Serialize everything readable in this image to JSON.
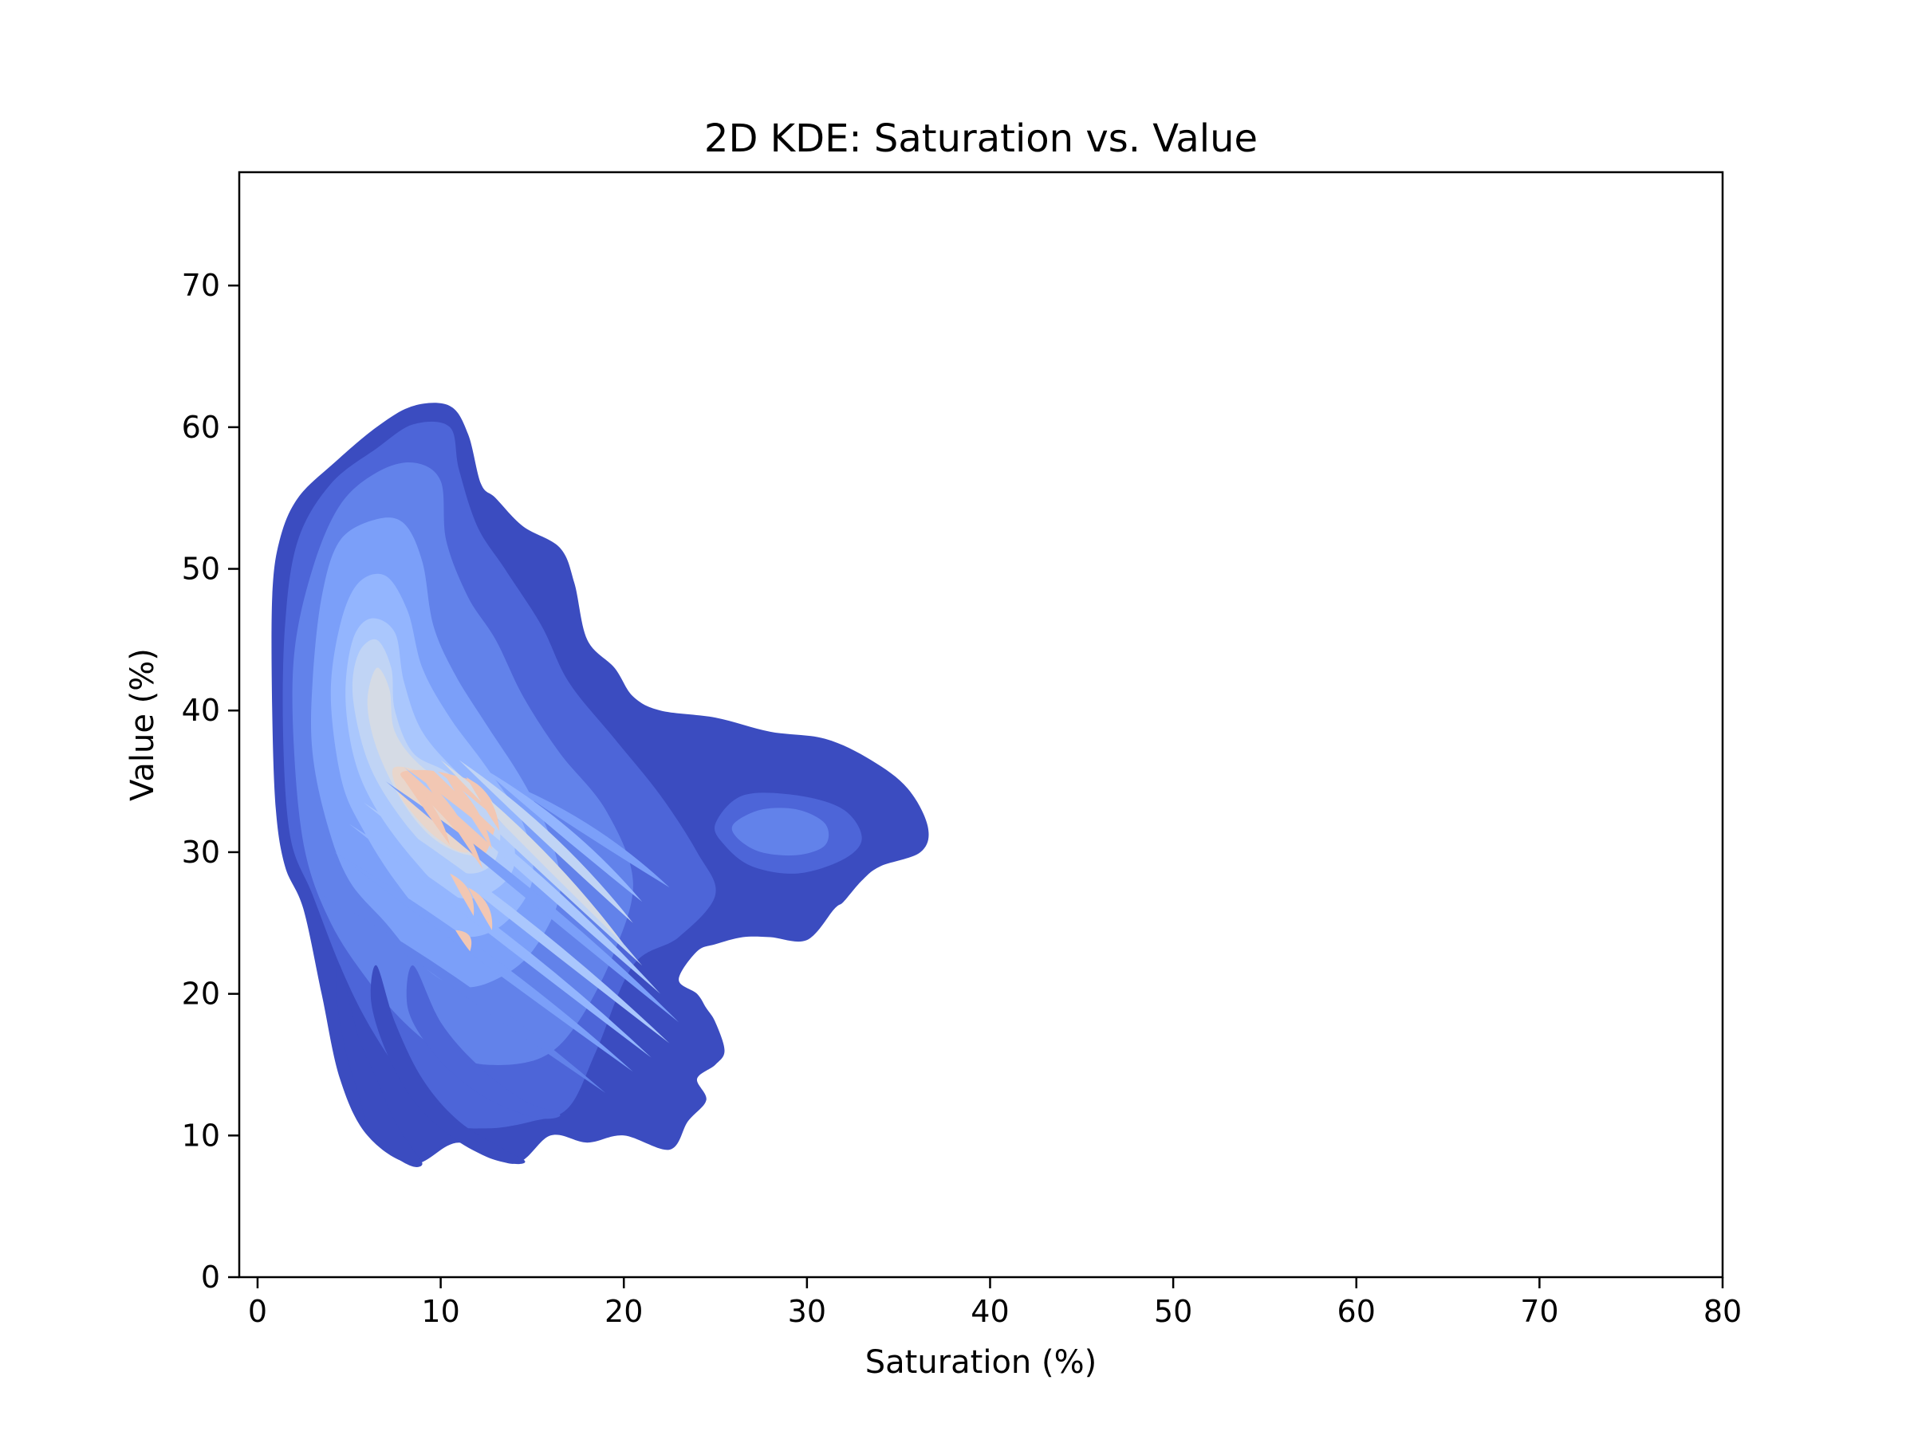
{
  "chart_data": {
    "type": "heatmap",
    "subtype": "2d-kde-filled-contour",
    "title": "2D KDE: Saturation vs. Value",
    "xlabel": "Saturation (%)",
    "ylabel": "Value (%)",
    "xlim": [
      -1,
      80
    ],
    "ylim": [
      0,
      78
    ],
    "xticks": [
      0,
      10,
      20,
      30,
      40,
      50,
      60,
      70,
      80
    ],
    "yticks": [
      0,
      10,
      20,
      30,
      40,
      50,
      60,
      70
    ],
    "grid": false,
    "colormap": "coolwarm",
    "level_colors": [
      "#3b4cc0",
      "#4d65d8",
      "#6282ea",
      "#7b9ff9",
      "#93b5fe",
      "#aac7fd",
      "#c0d4f5",
      "#d5dbe5",
      "#e8d6cc",
      "#f2c7b3",
      "#e8765c"
    ],
    "contours": [
      {
        "level": 1,
        "polygon": [
          [
            0.8,
            48
          ],
          [
            1.2,
            52
          ],
          [
            2.2,
            55
          ],
          [
            4.2,
            57.5
          ],
          [
            6.5,
            60
          ],
          [
            8.5,
            61.5
          ],
          [
            10.5,
            61.5
          ],
          [
            11.5,
            59.5
          ],
          [
            12.2,
            56
          ],
          [
            13,
            55
          ],
          [
            14.5,
            53
          ],
          [
            16.5,
            51.5
          ],
          [
            17.3,
            49
          ],
          [
            18,
            45
          ],
          [
            19.5,
            43
          ],
          [
            20.5,
            41
          ],
          [
            22,
            40
          ],
          [
            25,
            39.5
          ],
          [
            28,
            38.5
          ],
          [
            31,
            38
          ],
          [
            33.5,
            36.5
          ],
          [
            35.5,
            34.5
          ],
          [
            36.6,
            31.8
          ],
          [
            36.2,
            30
          ],
          [
            34,
            29
          ],
          [
            33,
            28
          ],
          [
            32,
            26.5
          ],
          [
            31.5,
            26
          ],
          [
            30,
            23.8
          ],
          [
            28,
            24
          ],
          [
            26.5,
            24
          ],
          [
            25,
            23.5
          ],
          [
            24,
            23
          ],
          [
            23,
            21
          ],
          [
            24,
            20
          ],
          [
            24.5,
            19
          ],
          [
            25,
            18
          ],
          [
            25.5,
            16
          ],
          [
            25,
            15
          ],
          [
            24,
            14
          ],
          [
            24.5,
            12.5
          ],
          [
            23.5,
            11
          ],
          [
            22.5,
            9
          ],
          [
            20,
            10
          ],
          [
            18,
            9.5
          ],
          [
            16,
            10
          ],
          [
            14,
            8
          ],
          [
            11,
            9.5
          ],
          [
            8.5,
            8
          ],
          [
            6,
            10
          ],
          [
            4.5,
            14
          ],
          [
            3.5,
            20
          ],
          [
            2.5,
            26
          ],
          [
            1.5,
            29
          ],
          [
            1,
            33
          ],
          [
            0.8,
            40
          ]
        ]
      },
      {
        "level": 2,
        "polygon": [
          [
            1.5,
            46
          ],
          [
            2.2,
            52
          ],
          [
            4,
            56
          ],
          [
            6.5,
            58.5
          ],
          [
            8.5,
            60.2
          ],
          [
            10.5,
            60
          ],
          [
            11,
            57
          ],
          [
            12,
            53
          ],
          [
            13.5,
            50
          ],
          [
            15.5,
            46
          ],
          [
            17,
            42
          ],
          [
            19.5,
            38
          ],
          [
            22,
            34
          ],
          [
            24,
            30
          ],
          [
            25,
            27
          ],
          [
            23,
            24
          ],
          [
            20.5,
            22
          ],
          [
            18.5,
            16
          ],
          [
            17,
            12
          ],
          [
            15,
            11
          ],
          [
            12.5,
            10.5
          ],
          [
            10,
            11
          ],
          [
            8,
            14
          ],
          [
            6,
            18
          ],
          [
            4.5,
            22
          ],
          [
            3,
            27
          ],
          [
            1.8,
            31
          ],
          [
            1.4,
            38
          ]
        ]
      },
      {
        "level": 3,
        "polygon": [
          [
            2,
            44
          ],
          [
            3,
            50
          ],
          [
            4.5,
            54.5
          ],
          [
            6.5,
            56.8
          ],
          [
            8.5,
            57.5
          ],
          [
            10,
            56.2
          ],
          [
            10.3,
            52
          ],
          [
            11.5,
            48
          ],
          [
            13,
            45
          ],
          [
            14.5,
            41
          ],
          [
            16.5,
            37
          ],
          [
            19,
            33
          ],
          [
            20.5,
            28
          ],
          [
            19.5,
            23
          ],
          [
            17.5,
            18
          ],
          [
            15.5,
            15.5
          ],
          [
            12.5,
            15
          ],
          [
            10,
            16
          ],
          [
            8,
            18
          ],
          [
            6,
            21
          ],
          [
            4,
            25
          ],
          [
            2.6,
            30
          ],
          [
            2,
            37
          ]
        ]
      },
      {
        "level": 4,
        "polygon": [
          [
            3,
            42
          ],
          [
            3.5,
            48
          ],
          [
            4.5,
            52
          ],
          [
            6.5,
            53.5
          ],
          [
            8,
            53.2
          ],
          [
            9,
            50.5
          ],
          [
            9.6,
            46
          ],
          [
            10.8,
            42.5
          ],
          [
            12.5,
            39
          ],
          [
            14.5,
            35
          ],
          [
            16,
            31
          ],
          [
            16.5,
            27
          ],
          [
            15,
            23
          ],
          [
            13,
            21
          ],
          [
            11,
            20.5
          ],
          [
            9,
            22
          ],
          [
            7,
            25
          ],
          [
            5,
            28
          ],
          [
            3.8,
            32
          ],
          [
            3,
            37
          ]
        ]
      },
      {
        "level": 5,
        "polygon": [
          [
            4,
            41
          ],
          [
            4.5,
            46
          ],
          [
            5.5,
            49
          ],
          [
            7,
            49.5
          ],
          [
            8.2,
            47
          ],
          [
            9,
            43
          ],
          [
            10.5,
            39.5
          ],
          [
            12.5,
            36
          ],
          [
            14.5,
            32
          ],
          [
            15,
            28
          ],
          [
            13.5,
            25
          ],
          [
            11.5,
            24
          ],
          [
            9.5,
            25
          ],
          [
            7.5,
            28
          ],
          [
            5.8,
            31.5
          ],
          [
            4.6,
            35
          ]
        ]
      },
      {
        "level": 6,
        "polygon": [
          [
            4.8,
            41
          ],
          [
            5.2,
            45
          ],
          [
            6.2,
            46.5
          ],
          [
            7.5,
            45.5
          ],
          [
            8,
            42
          ],
          [
            9,
            38.5
          ],
          [
            11,
            35.5
          ],
          [
            13.5,
            32.5
          ],
          [
            14,
            29
          ],
          [
            12.5,
            27
          ],
          [
            10.5,
            27
          ],
          [
            8.5,
            29.5
          ],
          [
            6.5,
            33
          ],
          [
            5.3,
            36.5
          ]
        ]
      },
      {
        "level": 7,
        "polygon": [
          [
            5.2,
            41
          ],
          [
            5.5,
            44
          ],
          [
            6.5,
            45
          ],
          [
            7.3,
            43
          ],
          [
            7.5,
            40
          ],
          [
            8.5,
            37
          ],
          [
            10.5,
            35.5
          ],
          [
            13,
            32.5
          ],
          [
            13,
            29.5
          ],
          [
            11.5,
            28.5
          ],
          [
            9.5,
            30
          ],
          [
            7.5,
            33
          ],
          [
            6,
            36.5
          ]
        ]
      },
      {
        "level": 8,
        "polygon": [
          [
            6,
            40.5
          ],
          [
            6.5,
            43
          ],
          [
            7.2,
            41.5
          ],
          [
            7.5,
            38.5
          ],
          [
            9,
            36
          ],
          [
            11.5,
            34
          ],
          [
            12.8,
            31.5
          ],
          [
            12,
            29.8
          ],
          [
            10,
            30.6
          ],
          [
            8.2,
            33
          ],
          [
            6.6,
            37
          ]
        ]
      },
      {
        "level": 9,
        "polygon": [
          [
            7.5,
            36
          ],
          [
            9.5,
            35.5
          ],
          [
            11.5,
            34.5
          ],
          [
            12.5,
            32
          ],
          [
            11.5,
            30
          ],
          [
            9.8,
            31
          ],
          [
            8.3,
            33
          ],
          [
            7.6,
            34.5
          ]
        ]
      },
      {
        "level": 10,
        "polygon": [
          [
            7.8,
            35.5
          ],
          [
            9,
            34
          ],
          [
            10.5,
            32
          ],
          [
            12,
            29.5
          ],
          [
            12.8,
            31
          ],
          [
            13,
            33
          ],
          [
            12,
            34.8
          ],
          [
            10.5,
            35.5
          ],
          [
            9,
            35.8
          ]
        ]
      },
      {
        "level": 1,
        "polygon": [
          [
            4.5,
            22
          ],
          [
            5.5,
            17
          ],
          [
            6.5,
            14
          ],
          [
            7.5,
            11
          ],
          [
            8.5,
            9
          ],
          [
            9,
            8
          ],
          [
            8.5,
            7.8
          ],
          [
            7.5,
            8.5
          ],
          [
            6.2,
            10
          ],
          [
            5.5,
            13
          ],
          [
            4.8,
            16
          ],
          [
            4.3,
            20
          ]
        ]
      },
      {
        "level": 1,
        "polygon": [
          [
            6.5,
            22
          ],
          [
            7.5,
            18
          ],
          [
            9,
            14
          ],
          [
            11,
            11
          ],
          [
            13.5,
            9
          ],
          [
            14.6,
            8.2
          ],
          [
            14,
            8
          ],
          [
            12.5,
            8.5
          ],
          [
            10.5,
            10
          ],
          [
            8.5,
            12.5
          ],
          [
            7,
            16
          ],
          [
            6.2,
            19.5
          ]
        ]
      },
      {
        "level": 2,
        "polygon": [
          [
            8.5,
            22
          ],
          [
            10,
            18
          ],
          [
            12,
            15
          ],
          [
            14.5,
            12.5
          ],
          [
            16.5,
            11.5
          ],
          [
            15.5,
            11.2
          ],
          [
            13.5,
            12
          ],
          [
            11.5,
            13.5
          ],
          [
            9.5,
            16
          ],
          [
            8.2,
            19
          ]
        ]
      },
      {
        "level": 2,
        "polygon": [
          [
            25,
            32
          ],
          [
            26.5,
            34
          ],
          [
            29.5,
            34
          ],
          [
            32,
            33
          ],
          [
            33,
            31
          ],
          [
            32,
            29.5
          ],
          [
            29.5,
            28.5
          ],
          [
            27,
            29
          ],
          [
            25.5,
            30.5
          ]
        ]
      },
      {
        "level": 3,
        "polygon": [
          [
            26,
            32
          ],
          [
            27.5,
            33
          ],
          [
            29.5,
            33
          ],
          [
            31,
            32
          ],
          [
            31,
            30.5
          ],
          [
            29.5,
            29.8
          ],
          [
            27.5,
            30
          ],
          [
            26.2,
            31
          ]
        ]
      }
    ],
    "level_bands": [
      {
        "level": 3,
        "x_start": 3.5,
        "y_start": 27,
        "x_end": 19,
        "y_end": 13
      },
      {
        "level": 4,
        "x_start": 4.2,
        "y_start": 30,
        "x_end": 20.5,
        "y_end": 14.5
      },
      {
        "level": 5,
        "x_start": 5,
        "y_start": 32,
        "x_end": 21.5,
        "y_end": 15.5
      },
      {
        "level": 6,
        "x_start": 5.8,
        "y_start": 33.5,
        "x_end": 22.5,
        "y_end": 16.5
      },
      {
        "level": 4,
        "x_start": 7,
        "y_start": 35,
        "x_end": 23,
        "y_end": 18
      },
      {
        "level": 6,
        "x_start": 8,
        "y_start": 36,
        "x_end": 22,
        "y_end": 20
      },
      {
        "level": 7,
        "x_start": 9,
        "y_start": 36.5,
        "x_end": 21,
        "y_end": 22
      },
      {
        "level": 8,
        "x_start": 10,
        "y_start": 36.5,
        "x_end": 20,
        "y_end": 23.5
      },
      {
        "level": 7,
        "x_start": 11,
        "y_start": 36.5,
        "x_end": 20.5,
        "y_end": 25
      },
      {
        "level": 5,
        "x_start": 12.2,
        "y_start": 36,
        "x_end": 21,
        "y_end": 26.5
      },
      {
        "level": 4,
        "x_start": 13.5,
        "y_start": 35,
        "x_end": 22.5,
        "y_end": 27.5
      }
    ],
    "peak_streaks": [
      {
        "level": 10,
        "x_start": 7.8,
        "y_start": 35.5,
        "x_end": 10.5,
        "y_end": 30.5
      },
      {
        "level": 10,
        "x_start": 8.9,
        "y_start": 35.5,
        "x_end": 12.3,
        "y_end": 28.8
      },
      {
        "level": 10,
        "x_start": 10.2,
        "y_start": 35.5,
        "x_end": 12.8,
        "y_end": 30.2
      },
      {
        "level": 10,
        "x_start": 11.4,
        "y_start": 35.3,
        "x_end": 13.2,
        "y_end": 31.5
      },
      {
        "level": 10,
        "x_start": 10.5,
        "y_start": 28.5,
        "x_end": 11.8,
        "y_end": 25.5
      },
      {
        "level": 10,
        "x_start": 11.5,
        "y_start": 27.5,
        "x_end": 12.8,
        "y_end": 24.5
      },
      {
        "level": 10,
        "x_start": 10.8,
        "y_start": 24.5,
        "x_end": 11.6,
        "y_end": 23
      }
    ]
  }
}
